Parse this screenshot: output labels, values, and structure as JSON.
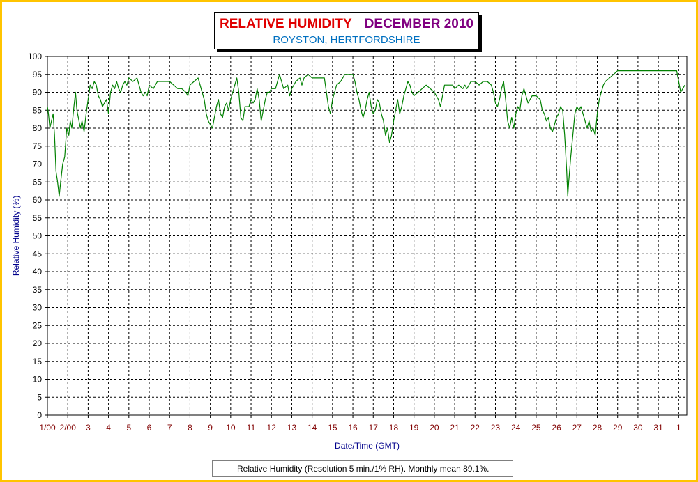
{
  "header": {
    "title": "RELATIVE HUMIDITY",
    "month": "DECEMBER 2010",
    "subtitle": "ROYSTON, HERTFORDSHIRE"
  },
  "colors": {
    "frame": "#ffc400",
    "title": "#e00000",
    "month": "#800080",
    "subtitle": "#0070c0",
    "series": "#008000",
    "x_tick_text": "#800000",
    "axis_label": "#00008b"
  },
  "chart_data": {
    "type": "line",
    "title": "RELATIVE HUMIDITY DECEMBER 2010",
    "subtitle": "ROYSTON, HERTFORDSHIRE",
    "xlabel": "Date/Time (GMT)",
    "ylabel": "Relative Humidity (%)",
    "ylim": [
      0,
      100
    ],
    "yticks": [
      0,
      5,
      10,
      15,
      20,
      25,
      30,
      35,
      40,
      45,
      50,
      55,
      60,
      65,
      70,
      75,
      80,
      85,
      90,
      95,
      100
    ],
    "xlim": [
      1.0,
      32.4
    ],
    "xticks": [
      {
        "x": 1.0,
        "label": "1/00"
      },
      {
        "x": 2.0,
        "label": "2/00"
      },
      {
        "x": 3.0,
        "label": "3"
      },
      {
        "x": 4.0,
        "label": "4"
      },
      {
        "x": 5.0,
        "label": "5"
      },
      {
        "x": 6.0,
        "label": "6"
      },
      {
        "x": 7.0,
        "label": "7"
      },
      {
        "x": 8.0,
        "label": "8"
      },
      {
        "x": 9.0,
        "label": "9"
      },
      {
        "x": 10.0,
        "label": "10"
      },
      {
        "x": 11.0,
        "label": "11"
      },
      {
        "x": 12.0,
        "label": "12"
      },
      {
        "x": 13.0,
        "label": "13"
      },
      {
        "x": 14.0,
        "label": "14"
      },
      {
        "x": 15.0,
        "label": "15"
      },
      {
        "x": 16.0,
        "label": "16"
      },
      {
        "x": 17.0,
        "label": "17"
      },
      {
        "x": 18.0,
        "label": "18"
      },
      {
        "x": 19.0,
        "label": "19"
      },
      {
        "x": 20.0,
        "label": "20"
      },
      {
        "x": 21.0,
        "label": "21"
      },
      {
        "x": 22.0,
        "label": "22"
      },
      {
        "x": 23.0,
        "label": "23"
      },
      {
        "x": 24.0,
        "label": "24"
      },
      {
        "x": 25.0,
        "label": "25"
      },
      {
        "x": 26.0,
        "label": "26"
      },
      {
        "x": 27.0,
        "label": "27"
      },
      {
        "x": 28.0,
        "label": "28"
      },
      {
        "x": 29.0,
        "label": "29"
      },
      {
        "x": 30.0,
        "label": "30"
      },
      {
        "x": 31.0,
        "label": "31"
      },
      {
        "x": 32.0,
        "label": "1"
      }
    ],
    "grid": true,
    "legend_position": "bottom-center",
    "series": [
      {
        "name": "Relative Humidity (Resolution 5 min./1% RH). Monthly mean 89.1%.",
        "color": "#008000",
        "points": [
          [
            1.0,
            86
          ],
          [
            1.05,
            84
          ],
          [
            1.12,
            80
          ],
          [
            1.2,
            82
          ],
          [
            1.28,
            84
          ],
          [
            1.35,
            78
          ],
          [
            1.42,
            68
          ],
          [
            1.5,
            65
          ],
          [
            1.58,
            61
          ],
          [
            1.65,
            65
          ],
          [
            1.75,
            70
          ],
          [
            1.85,
            72
          ],
          [
            1.95,
            80
          ],
          [
            2.05,
            78
          ],
          [
            2.12,
            82
          ],
          [
            2.2,
            80
          ],
          [
            2.3,
            86
          ],
          [
            2.38,
            90
          ],
          [
            2.45,
            85
          ],
          [
            2.55,
            82
          ],
          [
            2.62,
            80
          ],
          [
            2.7,
            82
          ],
          [
            2.8,
            79
          ],
          [
            2.9,
            84
          ],
          [
            3.0,
            88
          ],
          [
            3.1,
            92
          ],
          [
            3.2,
            91
          ],
          [
            3.3,
            93
          ],
          [
            3.4,
            92
          ],
          [
            3.5,
            89
          ],
          [
            3.6,
            88
          ],
          [
            3.7,
            86
          ],
          [
            3.8,
            87
          ],
          [
            3.9,
            88
          ],
          [
            4.0,
            84
          ],
          [
            4.1,
            90
          ],
          [
            4.2,
            92
          ],
          [
            4.3,
            91
          ],
          [
            4.4,
            93
          ],
          [
            4.5,
            91
          ],
          [
            4.6,
            90
          ],
          [
            4.7,
            92
          ],
          [
            4.8,
            93
          ],
          [
            4.9,
            92
          ],
          [
            5.0,
            94
          ],
          [
            5.2,
            93
          ],
          [
            5.4,
            94
          ],
          [
            5.5,
            92
          ],
          [
            5.6,
            90
          ],
          [
            5.7,
            89
          ],
          [
            5.8,
            90
          ],
          [
            5.9,
            89
          ],
          [
            6.0,
            92
          ],
          [
            6.2,
            91
          ],
          [
            6.4,
            93
          ],
          [
            6.8,
            93
          ],
          [
            7.0,
            93
          ],
          [
            7.2,
            92
          ],
          [
            7.4,
            91
          ],
          [
            7.6,
            91
          ],
          [
            7.8,
            90
          ],
          [
            7.9,
            89
          ],
          [
            8.0,
            92
          ],
          [
            8.2,
            93
          ],
          [
            8.4,
            94
          ],
          [
            8.5,
            92
          ],
          [
            8.6,
            90
          ],
          [
            8.7,
            88
          ],
          [
            8.8,
            84
          ],
          [
            8.9,
            82
          ],
          [
            9.0,
            81
          ],
          [
            9.1,
            80
          ],
          [
            9.2,
            83
          ],
          [
            9.3,
            86
          ],
          [
            9.4,
            88
          ],
          [
            9.5,
            84
          ],
          [
            9.6,
            83
          ],
          [
            9.7,
            86
          ],
          [
            9.8,
            87
          ],
          [
            9.9,
            85
          ],
          [
            10.0,
            88
          ],
          [
            10.1,
            90
          ],
          [
            10.2,
            92
          ],
          [
            10.3,
            94
          ],
          [
            10.35,
            92
          ],
          [
            10.4,
            90
          ],
          [
            10.5,
            83
          ],
          [
            10.6,
            82
          ],
          [
            10.7,
            86
          ],
          [
            10.9,
            86
          ],
          [
            11.0,
            88
          ],
          [
            11.1,
            87
          ],
          [
            11.2,
            88
          ],
          [
            11.3,
            91
          ],
          [
            11.4,
            88
          ],
          [
            11.5,
            82
          ],
          [
            11.6,
            85
          ],
          [
            11.7,
            88
          ],
          [
            11.8,
            90
          ],
          [
            11.9,
            90
          ],
          [
            12.0,
            91
          ],
          [
            12.2,
            91
          ],
          [
            12.3,
            93
          ],
          [
            12.4,
            95
          ],
          [
            12.5,
            93
          ],
          [
            12.6,
            91
          ],
          [
            12.8,
            92
          ],
          [
            12.9,
            89
          ],
          [
            13.0,
            91
          ],
          [
            13.2,
            93
          ],
          [
            13.4,
            94
          ],
          [
            13.5,
            92
          ],
          [
            13.6,
            94
          ],
          [
            13.8,
            95
          ],
          [
            14.0,
            94
          ],
          [
            14.2,
            94
          ],
          [
            14.4,
            94
          ],
          [
            14.6,
            94
          ],
          [
            14.7,
            90
          ],
          [
            14.8,
            86
          ],
          [
            14.9,
            84
          ],
          [
            15.0,
            88
          ],
          [
            15.1,
            90
          ],
          [
            15.2,
            92
          ],
          [
            15.4,
            93
          ],
          [
            15.5,
            94
          ],
          [
            15.6,
            95
          ],
          [
            15.8,
            95
          ],
          [
            16.0,
            95
          ],
          [
            16.1,
            93
          ],
          [
            16.2,
            90
          ],
          [
            16.3,
            88
          ],
          [
            16.4,
            85
          ],
          [
            16.5,
            83
          ],
          [
            16.6,
            85
          ],
          [
            16.7,
            88
          ],
          [
            16.8,
            90
          ],
          [
            16.9,
            86
          ],
          [
            17.0,
            84
          ],
          [
            17.1,
            85
          ],
          [
            17.2,
            88
          ],
          [
            17.3,
            87
          ],
          [
            17.4,
            84
          ],
          [
            17.5,
            82
          ],
          [
            17.6,
            78
          ],
          [
            17.7,
            80
          ],
          [
            17.8,
            76
          ],
          [
            17.9,
            78
          ],
          [
            18.0,
            82
          ],
          [
            18.1,
            85
          ],
          [
            18.2,
            88
          ],
          [
            18.3,
            84
          ],
          [
            18.4,
            86
          ],
          [
            18.5,
            89
          ],
          [
            18.6,
            91
          ],
          [
            18.7,
            93
          ],
          [
            18.8,
            92
          ],
          [
            18.9,
            90
          ],
          [
            19.0,
            89
          ],
          [
            19.2,
            90
          ],
          [
            19.4,
            91
          ],
          [
            19.6,
            92
          ],
          [
            19.8,
            91
          ],
          [
            20.0,
            90
          ],
          [
            20.2,
            88
          ],
          [
            20.3,
            86
          ],
          [
            20.4,
            89
          ],
          [
            20.5,
            92
          ],
          [
            20.7,
            92
          ],
          [
            20.9,
            92
          ],
          [
            21.0,
            91
          ],
          [
            21.2,
            92
          ],
          [
            21.4,
            91
          ],
          [
            21.5,
            92
          ],
          [
            21.6,
            91
          ],
          [
            21.8,
            93
          ],
          [
            22.0,
            93
          ],
          [
            22.2,
            92
          ],
          [
            22.4,
            93
          ],
          [
            22.6,
            93
          ],
          [
            22.8,
            92
          ],
          [
            22.9,
            90
          ],
          [
            23.0,
            87
          ],
          [
            23.1,
            86
          ],
          [
            23.2,
            88
          ],
          [
            23.3,
            91
          ],
          [
            23.4,
            93
          ],
          [
            23.5,
            88
          ],
          [
            23.6,
            82
          ],
          [
            23.7,
            80
          ],
          [
            23.8,
            83
          ],
          [
            23.9,
            80
          ],
          [
            24.0,
            84
          ],
          [
            24.1,
            86
          ],
          [
            24.2,
            85
          ],
          [
            24.3,
            89
          ],
          [
            24.4,
            91
          ],
          [
            24.5,
            89
          ],
          [
            24.6,
            87
          ],
          [
            24.7,
            88
          ],
          [
            24.8,
            89
          ],
          [
            25.0,
            89
          ],
          [
            25.2,
            88
          ],
          [
            25.3,
            85
          ],
          [
            25.4,
            84
          ],
          [
            25.5,
            82
          ],
          [
            25.6,
            83
          ],
          [
            25.7,
            80
          ],
          [
            25.8,
            79
          ],
          [
            25.9,
            81
          ],
          [
            26.0,
            83
          ],
          [
            26.1,
            84
          ],
          [
            26.2,
            86
          ],
          [
            26.3,
            85
          ],
          [
            26.4,
            78
          ],
          [
            26.5,
            68
          ],
          [
            26.55,
            61
          ],
          [
            26.6,
            65
          ],
          [
            26.7,
            72
          ],
          [
            26.8,
            78
          ],
          [
            26.9,
            84
          ],
          [
            27.0,
            86
          ],
          [
            27.1,
            85
          ],
          [
            27.2,
            86
          ],
          [
            27.3,
            84
          ],
          [
            27.4,
            82
          ],
          [
            27.5,
            80
          ],
          [
            27.6,
            82
          ],
          [
            27.7,
            79
          ],
          [
            27.8,
            80
          ],
          [
            27.9,
            78
          ],
          [
            28.0,
            84
          ],
          [
            28.1,
            88
          ],
          [
            28.2,
            90
          ],
          [
            28.3,
            92
          ],
          [
            28.4,
            93
          ],
          [
            28.6,
            94
          ],
          [
            28.8,
            95
          ],
          [
            29.0,
            96
          ],
          [
            29.5,
            96
          ],
          [
            30.0,
            96
          ],
          [
            30.5,
            96
          ],
          [
            31.0,
            96
          ],
          [
            31.5,
            96
          ],
          [
            31.9,
            96
          ],
          [
            32.0,
            93
          ],
          [
            32.1,
            90
          ],
          [
            32.2,
            91
          ],
          [
            32.3,
            92
          ]
        ]
      }
    ]
  },
  "legend": {
    "entry": "Relative Humidity (Resolution 5 min./1% RH). Monthly mean 89.1%."
  }
}
